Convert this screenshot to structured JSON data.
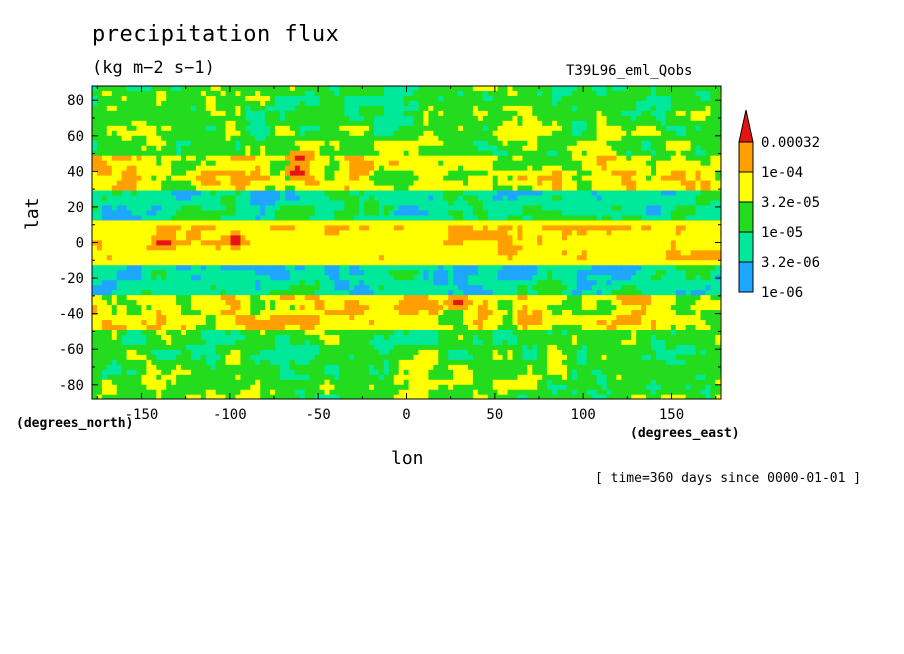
{
  "chart_data": {
    "type": "heatmap",
    "title": "precipitation flux",
    "units": "(kg m−2 s−1)",
    "experiment": "T39L96_eml_Qobs",
    "xlabel": "lon",
    "ylabel": "lat",
    "x_units_label": "(degrees_east)",
    "y_units_label": "(degrees_north)",
    "time_label": "[ time=360 days since 0000-01-01 ]",
    "xlim": [
      -178,
      178
    ],
    "ylim": [
      -88,
      88
    ],
    "x_ticks": [
      -150,
      -100,
      -50,
      0,
      50,
      100,
      150
    ],
    "y_ticks": [
      80,
      60,
      40,
      20,
      0,
      -20,
      -40,
      -60,
      -80
    ],
    "colorbar": {
      "levels": [
        "1e-06",
        "3.2e-06",
        "1e-05",
        "3.2e-05",
        "1e-04",
        "0.00032"
      ],
      "colors": [
        "#1ea7ff",
        "#00e89a",
        "#24dc1e",
        "#ffff00",
        "#ffa000",
        "#e61414"
      ],
      "below_color": "#ffffff",
      "extend": "max"
    },
    "zonal_band_level": [
      {
        "lat": 85,
        "level": 2
      },
      {
        "lat": 75,
        "level": 2
      },
      {
        "lat": 65,
        "level": 2
      },
      {
        "lat": 55,
        "level": 2
      },
      {
        "lat": 45,
        "level": 3
      },
      {
        "lat": 35,
        "level": 3
      },
      {
        "lat": 25,
        "level": 1
      },
      {
        "lat": 15,
        "level": 1
      },
      {
        "lat": 5,
        "level": 3
      },
      {
        "lat": -5,
        "level": 3
      },
      {
        "lat": -15,
        "level": 1
      },
      {
        "lat": -25,
        "level": 1
      },
      {
        "lat": -35,
        "level": 3
      },
      {
        "lat": -45,
        "level": 3
      },
      {
        "lat": -55,
        "level": 2
      },
      {
        "lat": -65,
        "level": 2
      },
      {
        "lat": -75,
        "level": 2
      },
      {
        "lat": -85,
        "level": 2
      }
    ],
    "notable_maxima": [
      {
        "lon": -62,
        "lat": 40,
        "level": 5
      },
      {
        "lon": -97,
        "lat": 1,
        "level": 5
      },
      {
        "lon": -137,
        "lat": 0,
        "level": 5
      },
      {
        "lon": 29,
        "lat": -34,
        "level": 5
      },
      {
        "lon": -60,
        "lat": 48,
        "level": 5
      }
    ]
  }
}
